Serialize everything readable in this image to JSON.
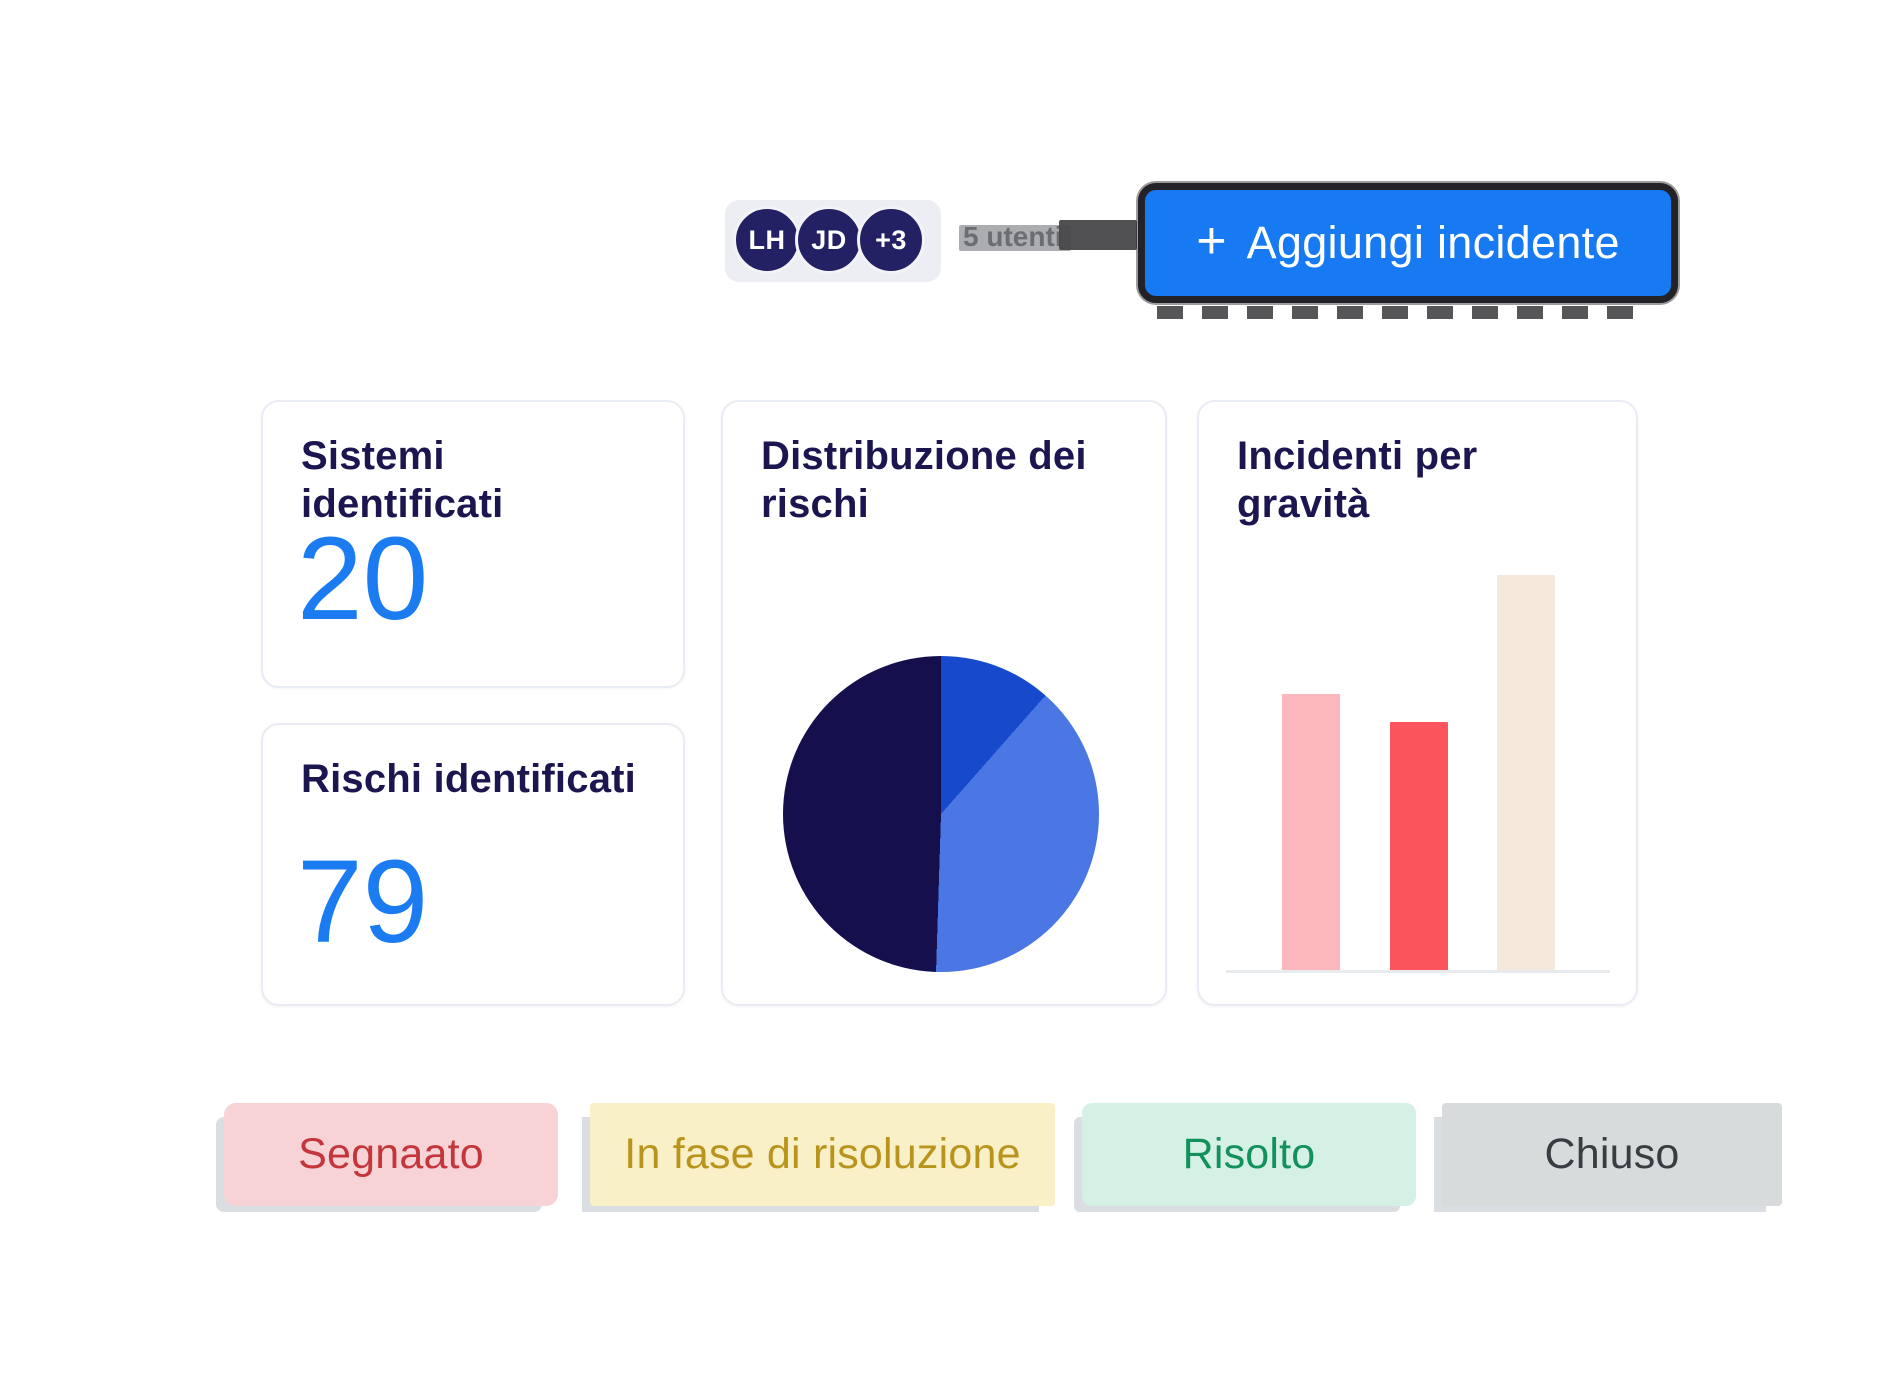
{
  "header": {
    "avatars": [
      "LH",
      "JD",
      "+3"
    ],
    "users_label": "5 utenti",
    "add_button": {
      "plus": "+",
      "label": "Aggiungi incidente",
      "bg": "#187AF3"
    }
  },
  "kpi_cards": [
    {
      "title": "Sistemi identificati",
      "value": "20"
    },
    {
      "title": "Rischi identificati",
      "value": "79"
    }
  ],
  "chart_data": [
    {
      "type": "pie",
      "title": "Distribuzione dei rischi",
      "start_angle": "top",
      "direction": "clockwise",
      "legend": false,
      "slices": [
        {
          "label": "slice-1",
          "value": 11.5,
          "color": "#1749CD"
        },
        {
          "label": "slice-2",
          "value": 39.0,
          "color": "#4A77E4"
        },
        {
          "label": "slice-3",
          "value": 49.5,
          "color": "#150F4E"
        }
      ]
    },
    {
      "type": "bar",
      "title": "Incidenti per gravità",
      "categories": [
        "",
        "",
        ""
      ],
      "values": [
        70,
        63,
        100
      ],
      "value_unit": "relative-height-percent",
      "colors": [
        "#FBB7BC",
        "#FA545C",
        "#F4E9DA"
      ],
      "axis_labels": "none",
      "baseline": true
    }
  ],
  "status_badges": [
    {
      "label": "Segnaato",
      "bg": "#F8D3D6",
      "color": "#C2363C"
    },
    {
      "label": "In fase di risoluzione",
      "bg": "#FAF0C8",
      "color": "#B9941C"
    },
    {
      "label": "Risolto",
      "bg": "#D5F0E4",
      "color": "#13915C"
    },
    {
      "label": "Chiuso",
      "bg": "#D8DBDB",
      "color": "#383D42"
    }
  ],
  "colors": {
    "accent_blue": "#1B7CF2",
    "title_navy": "#1B1550",
    "avatar_navy": "#232163",
    "button_blue": "#187AF3"
  }
}
